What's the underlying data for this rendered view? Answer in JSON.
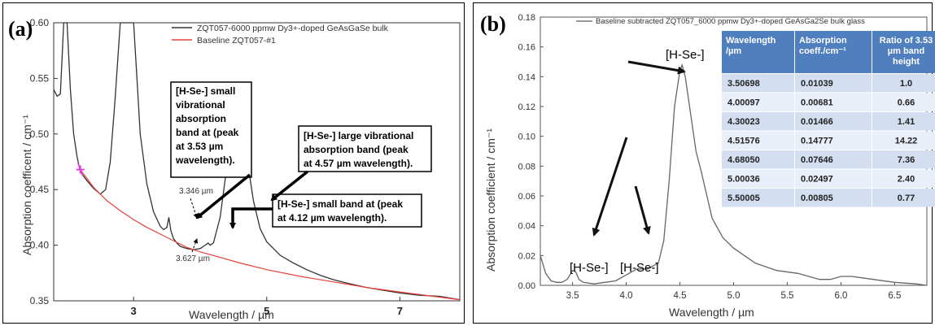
{
  "panels": [
    {
      "label": "(a)",
      "legend": [
        "ZQT057-6000 ppmw Dy3+-doped GeAsGaSe bulk",
        "Baseline ZQT057-#1"
      ],
      "annotations": {
        "small_band_353": [
          "[H-Se-] small",
          "vibrational",
          "absorption",
          "band at (peak",
          "at 3.53 µm",
          "wavelength)."
        ],
        "large_band_457": [
          "[H-Se-] large vibrational",
          "absorption band  (peak",
          "at 4.57 µm wavelength)."
        ],
        "small_band_412": [
          "[H-Se-] small band at (peak",
          "at 4.12 µm wavelength)."
        ],
        "marker_3346": "3.346 µm",
        "marker_3627": "3.627 µm"
      },
      "colors": {
        "sample": "#333333",
        "baseline": "#e8413a",
        "marker": "#e040e0"
      }
    },
    {
      "label": "(b)",
      "legend": [
        "Baseline subtracted ZQT057_6000 ppmw Dy3+-doped GeAsGa2Se bulk glass"
      ],
      "peak_labels": [
        "[H-Se-]",
        "[H-Se-]",
        "[H-Se-]"
      ],
      "table": {
        "headers": [
          [
            "Wavelength",
            "/µm"
          ],
          [
            "Absorption",
            "coeff./cm⁻¹"
          ],
          [
            "Ratio of 3.53",
            "µm band",
            "height"
          ]
        ],
        "rows": [
          [
            "3.50698",
            "0.01039",
            "1.0"
          ],
          [
            "4.00097",
            "0.00681",
            "0.66"
          ],
          [
            "4.30023",
            "0.01466",
            "1.41"
          ],
          [
            "4.51576",
            "0.14777",
            "14.22"
          ],
          [
            "4.68050",
            "0.07646",
            "7.36"
          ],
          [
            "5.00036",
            "0.02497",
            "2.40"
          ],
          [
            "5.50005",
            "0.00805",
            "0.77"
          ]
        ],
        "header_color": "#4f7fbf",
        "row_colors": [
          "#d3dff0",
          "#e9eff8"
        ]
      }
    }
  ],
  "chart_data": [
    {
      "type": "line",
      "xlabel": "Wavelength / µm",
      "ylabel": "Absorption coefficent / cm⁻¹",
      "xlim": [
        1.8,
        7.9
      ],
      "ylim": [
        0.35,
        0.6
      ],
      "xticks": [
        "3",
        "5",
        "7"
      ],
      "yticks": [
        "0.35",
        "0.40",
        "0.45",
        "0.50",
        "0.55",
        "0.60"
      ],
      "series": [
        {
          "name": "ZQT057-6000 ppmw Dy3+-doped GeAsGaSe bulk",
          "x": [
            1.8,
            1.85,
            1.9,
            1.95,
            2.0,
            2.05,
            2.1,
            2.15,
            2.2,
            2.3,
            2.4,
            2.5,
            2.58,
            2.65,
            2.72,
            2.8,
            2.9,
            2.95,
            3.0,
            3.05,
            3.1,
            3.2,
            3.3,
            3.4,
            3.45,
            3.5,
            3.53,
            3.56,
            3.6,
            3.65,
            3.7,
            3.8,
            3.9,
            4.0,
            4.05,
            4.1,
            4.12,
            4.15,
            4.2,
            4.3,
            4.4,
            4.5,
            4.57,
            4.6,
            4.7,
            4.8,
            4.9,
            5.0,
            5.1,
            5.2,
            5.4,
            5.6,
            5.8,
            6.0,
            6.2,
            6.5,
            6.8,
            7.0,
            7.3,
            7.6,
            7.9
          ],
          "y": [
            0.54,
            0.534,
            0.536,
            0.6,
            0.6,
            0.54,
            0.5,
            0.48,
            0.466,
            0.458,
            0.451,
            0.446,
            0.45,
            0.475,
            0.53,
            0.6,
            0.6,
            0.6,
            0.6,
            0.55,
            0.5,
            0.455,
            0.43,
            0.417,
            0.414,
            0.416,
            0.425,
            0.413,
            0.406,
            0.402,
            0.399,
            0.397,
            0.396,
            0.397,
            0.399,
            0.401,
            0.402,
            0.4,
            0.402,
            0.425,
            0.47,
            0.515,
            0.528,
            0.522,
            0.48,
            0.44,
            0.415,
            0.403,
            0.397,
            0.391,
            0.384,
            0.378,
            0.373,
            0.369,
            0.366,
            0.362,
            0.359,
            0.357,
            0.355,
            0.354,
            0.351
          ]
        },
        {
          "name": "Baseline ZQT057-#1",
          "x": [
            2.2,
            2.4,
            2.6,
            2.8,
            3.0,
            3.2,
            3.4,
            3.6,
            3.8,
            4.0,
            4.3,
            4.6,
            5.0,
            5.5,
            6.0,
            6.5,
            7.0,
            7.5,
            7.9
          ],
          "y": [
            0.468,
            0.452,
            0.44,
            0.431,
            0.423,
            0.416,
            0.41,
            0.404,
            0.398,
            0.394,
            0.389,
            0.384,
            0.378,
            0.372,
            0.367,
            0.362,
            0.358,
            0.354,
            0.351
          ]
        }
      ]
    },
    {
      "type": "line",
      "xlabel": "Wavelength / µm",
      "ylabel": "Absorption coefficient / cm⁻¹",
      "xlim": [
        3.2,
        6.8
      ],
      "ylim": [
        0.0,
        0.18
      ],
      "xticks": [
        "3.5",
        "4.0",
        "4.5",
        "5.0",
        "5.5",
        "6.0",
        "6.5"
      ],
      "yticks": [
        "0.00",
        "0.02",
        "0.04",
        "0.06",
        "0.08",
        "0.10",
        "0.12",
        "0.14",
        "0.16",
        "0.18"
      ],
      "series": [
        {
          "name": "Baseline subtracted ZQT057_6000 ppmw Dy3+-doped GeAsGa2Se bulk glass",
          "x": [
            3.2,
            3.25,
            3.3,
            3.35,
            3.4,
            3.45,
            3.5,
            3.53,
            3.56,
            3.6,
            3.7,
            3.8,
            3.9,
            4.0,
            4.1,
            4.2,
            4.3,
            4.35,
            4.4,
            4.45,
            4.5,
            4.52,
            4.55,
            4.6,
            4.65,
            4.7,
            4.8,
            4.9,
            5.0,
            5.2,
            5.4,
            5.6,
            5.8,
            5.9,
            6.0,
            6.1,
            6.2,
            6.3,
            6.5,
            6.7,
            6.8
          ],
          "y": [
            0.02,
            0.008,
            0.003,
            0.002,
            0.002,
            0.004,
            0.01,
            0.009,
            0.004,
            0.002,
            0.001,
            0.002,
            0.003,
            0.007,
            0.011,
            0.011,
            0.015,
            0.03,
            0.07,
            0.12,
            0.144,
            0.1478,
            0.14,
            0.115,
            0.09,
            0.076,
            0.045,
            0.032,
            0.025,
            0.015,
            0.01,
            0.008,
            0.004,
            0.004,
            0.006,
            0.006,
            0.005,
            0.004,
            0.002,
            0.001,
            0.0
          ]
        }
      ]
    }
  ]
}
